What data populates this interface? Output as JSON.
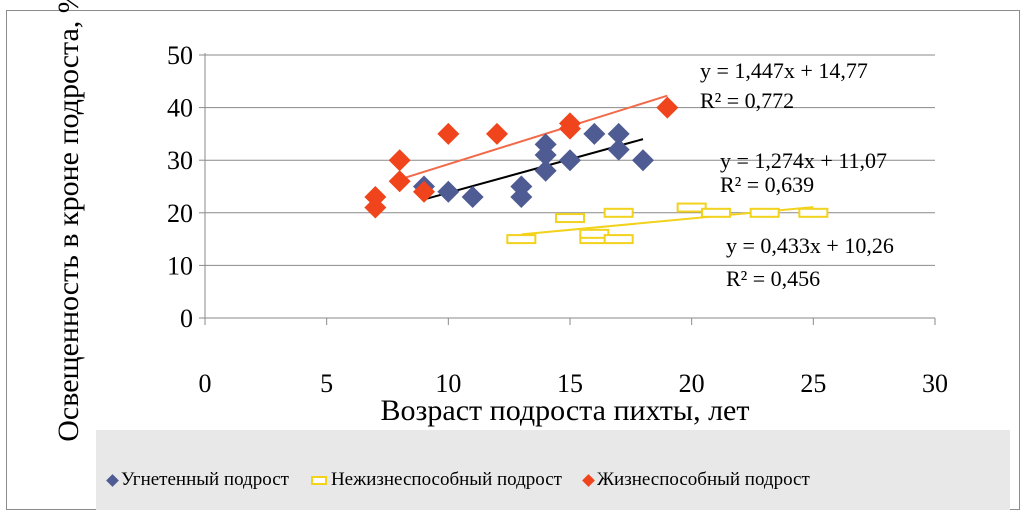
{
  "chart_data": {
    "type": "scatter",
    "xlabel": "Возраст подроста пихты, лет",
    "ylabel": "Освещенность в кроне подроста, %",
    "xlim": [
      0,
      30
    ],
    "ylim": [
      0,
      50
    ],
    "xticks": [
      "0",
      "5",
      "10",
      "15",
      "20",
      "25",
      "30"
    ],
    "yticks": [
      "0",
      "10",
      "20",
      "30",
      "40",
      "50"
    ],
    "grid": "horizontal",
    "legend_position": "bottom",
    "series": [
      {
        "name": "Угнетенный подрост",
        "color": "#4f5b93",
        "marker": "diamond",
        "points": [
          [
            9,
            25
          ],
          [
            10,
            24
          ],
          [
            11,
            23
          ],
          [
            13,
            23
          ],
          [
            13,
            25
          ],
          [
            14,
            28
          ],
          [
            14,
            31
          ],
          [
            14,
            33
          ],
          [
            15,
            30
          ],
          [
            16,
            35
          ],
          [
            17,
            32
          ],
          [
            17,
            35
          ],
          [
            18,
            30
          ]
        ],
        "trendline": {
          "slope": 1.274,
          "intercept": 11.07,
          "x_range": [
            9,
            18
          ],
          "color": "#000000"
        },
        "equation": "y = 1,274x + 11,07",
        "r2": "R² = 0,639"
      },
      {
        "name": "Нежизнеспособный подрост",
        "color": "#f2d21c",
        "marker": "rect",
        "points": [
          [
            13,
            15
          ],
          [
            15,
            19
          ],
          [
            16,
            15
          ],
          [
            16,
            16
          ],
          [
            17,
            15
          ],
          [
            17,
            20
          ],
          [
            20,
            21
          ],
          [
            21,
            20
          ],
          [
            23,
            20
          ],
          [
            25,
            20
          ]
        ],
        "trendline": {
          "slope": 0.433,
          "intercept": 10.26,
          "x_range": [
            13,
            25
          ],
          "color": "#f2d21c"
        },
        "equation": "y = 0,433x + 10,26",
        "r2": "R² = 0,456"
      },
      {
        "name": "Жизнеспособный подрост",
        "color": "#f0451c",
        "marker": "diamond",
        "points": [
          [
            7,
            21
          ],
          [
            7,
            23
          ],
          [
            8,
            26
          ],
          [
            8,
            30
          ],
          [
            9,
            24
          ],
          [
            10,
            35
          ],
          [
            12,
            35
          ],
          [
            15,
            36
          ],
          [
            15,
            37
          ],
          [
            19,
            40
          ]
        ],
        "trendline": {
          "slope": 1.447,
          "intercept": 14.77,
          "x_range": [
            8,
            19
          ],
          "color": "#f26a4a"
        },
        "equation": "y = 1,447x + 14,77",
        "r2": "R² = 0,772"
      }
    ]
  }
}
